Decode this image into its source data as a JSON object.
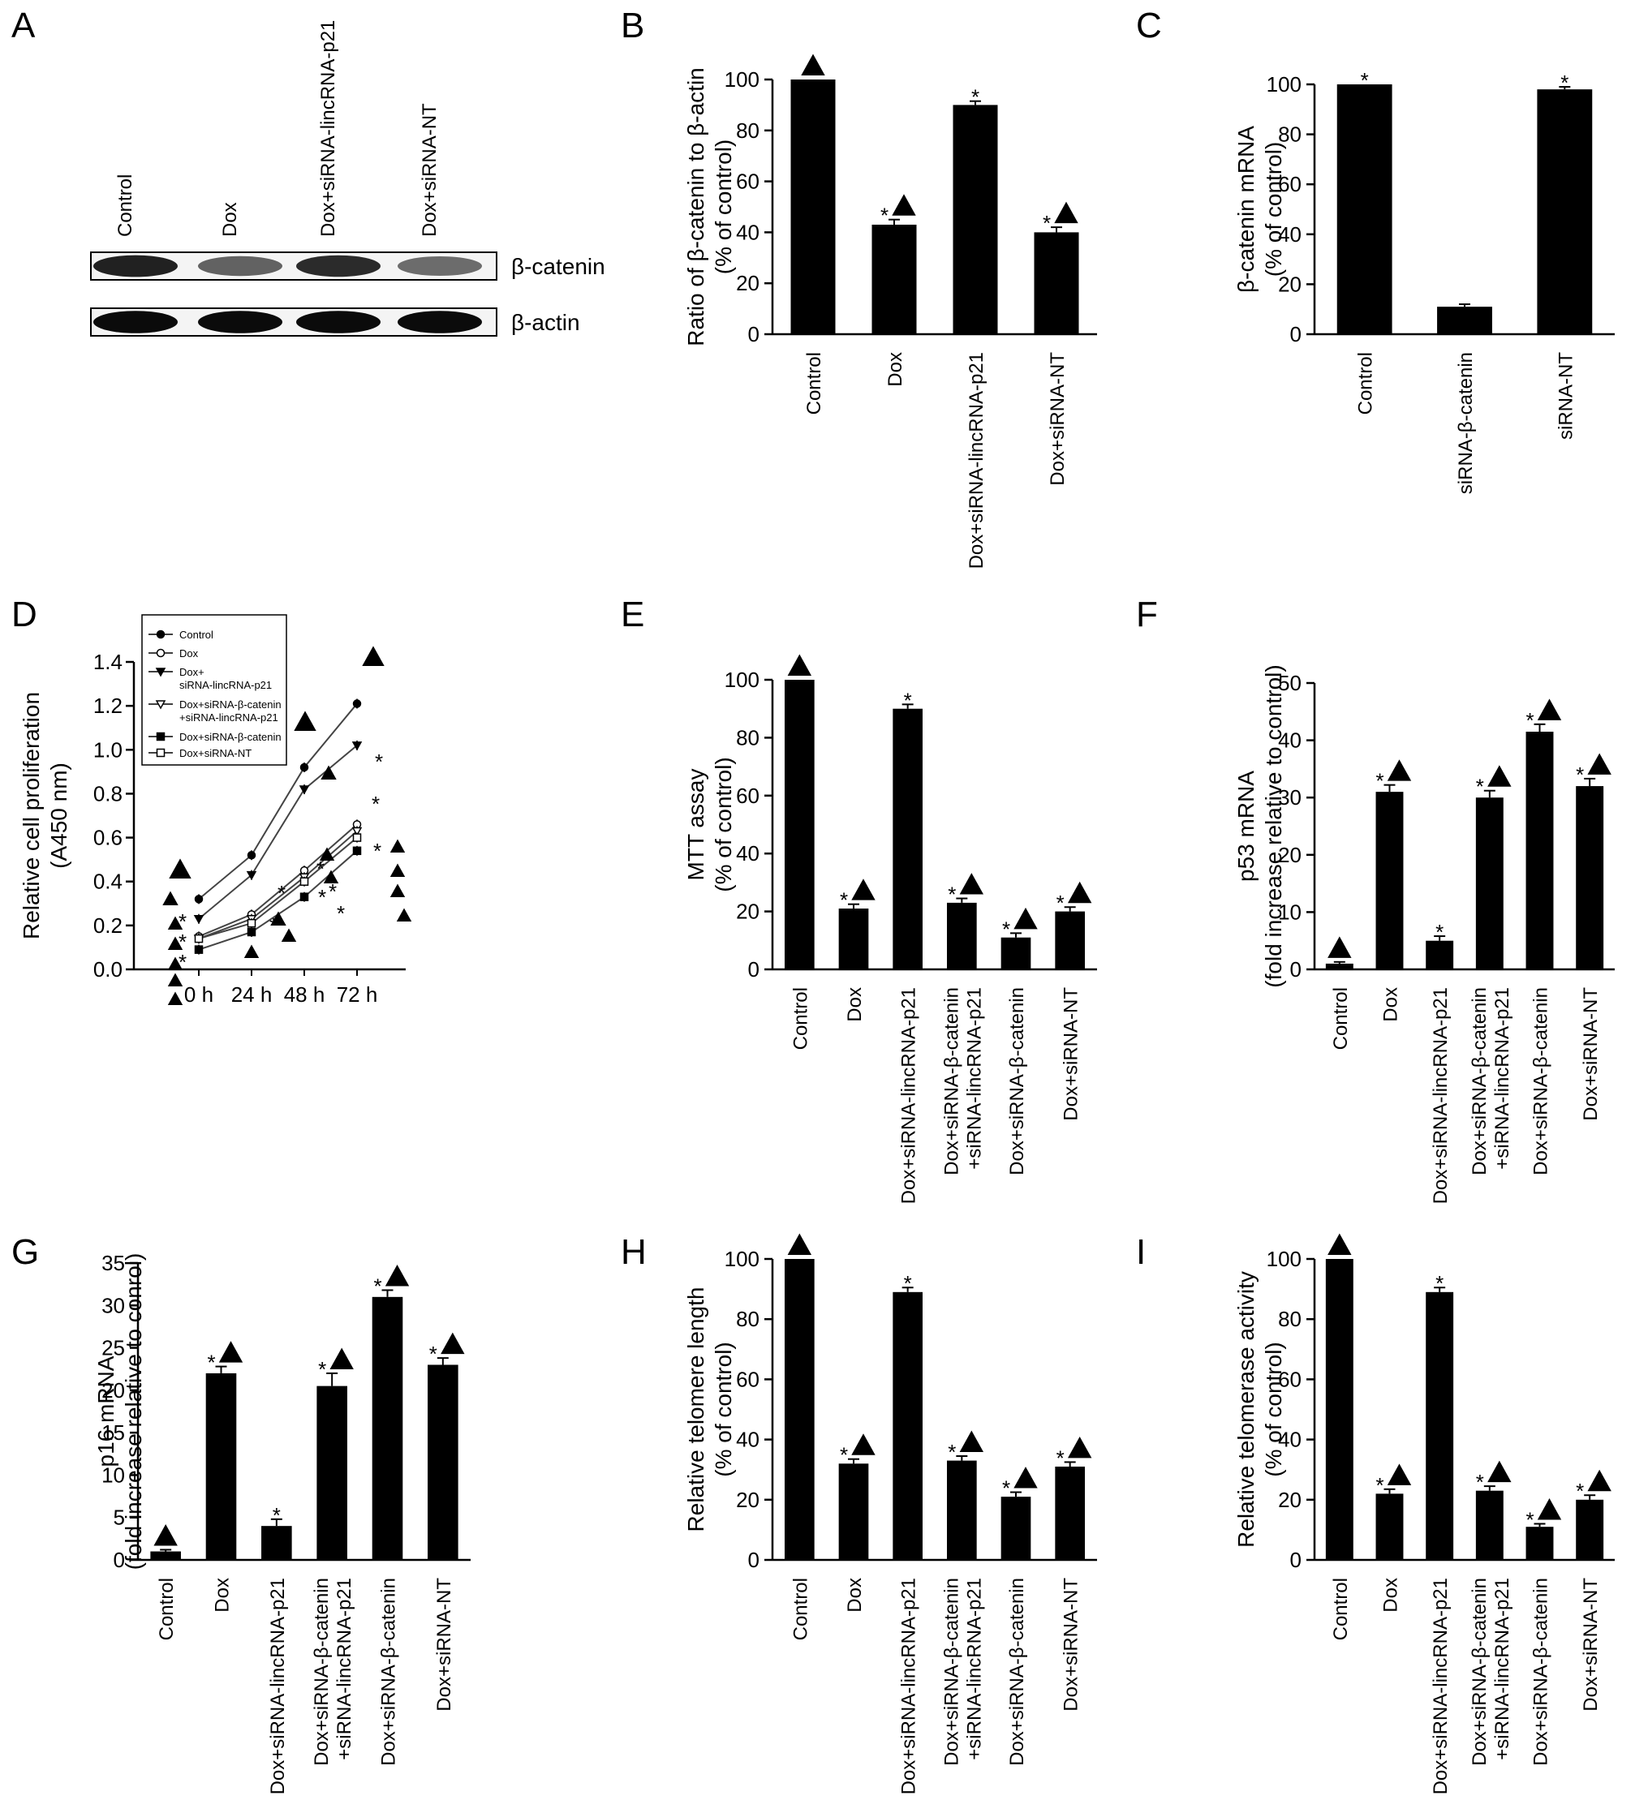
{
  "chart_data": [
    {
      "panel": "A",
      "type": "western-blot",
      "lanes": [
        "Control",
        "Dox",
        "Dox+siRNA-lincRNA-p21",
        "Dox+siRNA-NT"
      ],
      "rows": [
        "β-catenin",
        "β-actin"
      ],
      "intensity": {
        "β-catenin": [
          0.85,
          0.55,
          0.8,
          0.5
        ],
        "β-actin": [
          0.95,
          0.95,
          0.95,
          0.95
        ]
      }
    },
    {
      "panel": "B",
      "type": "bar",
      "ylabel": [
        "Ratio of β-catenin to β-actin",
        "(% of control)"
      ],
      "ylim": [
        0,
        100
      ],
      "yticks": [
        0,
        20,
        40,
        60,
        80,
        100
      ],
      "categories": [
        [
          "Control"
        ],
        [
          "Dox"
        ],
        [
          "Dox+siRNA-lincRNA-p21"
        ],
        [
          "Dox+siRNA-NT"
        ]
      ],
      "values": [
        100,
        43,
        90,
        40
      ],
      "errors": [
        0,
        2,
        1.5,
        2
      ],
      "annotations": [
        "▲",
        "*▲",
        "*",
        "*▲"
      ]
    },
    {
      "panel": "C",
      "type": "bar",
      "ylabel": [
        "β-catenin mRNA",
        "(% of control)"
      ],
      "ylim": [
        0,
        100
      ],
      "yticks": [
        0,
        20,
        40,
        60,
        80,
        100
      ],
      "categories": [
        [
          "Control"
        ],
        [
          "siRNA-β-catenin"
        ],
        [
          "siRNA-NT"
        ]
      ],
      "values": [
        100,
        11,
        98
      ],
      "errors": [
        0,
        1,
        1
      ],
      "annotations": [
        "*",
        "",
        "*"
      ]
    },
    {
      "panel": "D",
      "type": "line",
      "ylabel": [
        "Relative cell proliferation",
        "(A450 nm)"
      ],
      "ylim": [
        0,
        1.4
      ],
      "yticks": [
        "0.0",
        "0.2",
        "0.4",
        "0.6",
        "0.8",
        "1.0",
        "1.2",
        "1.4"
      ],
      "x": [
        "0 h",
        "24 h",
        "48 h",
        "72 h"
      ],
      "series": [
        {
          "name": "Control",
          "values": [
            0.32,
            0.52,
            0.92,
            1.21
          ],
          "marker": "filled-circle"
        },
        {
          "name": "Dox",
          "values": [
            0.15,
            0.25,
            0.45,
            0.66
          ],
          "marker": "open-circle"
        },
        {
          "name": "Dox+ siRNA-lincRNA-p21",
          "values": [
            0.23,
            0.43,
            0.82,
            1.02
          ],
          "marker": "filled-triangle"
        },
        {
          "name": "Dox+siRNA-β-catenin +siRNA-lincRNA-p21",
          "values": [
            0.14,
            0.23,
            0.42,
            0.63
          ],
          "marker": "open-triangle"
        },
        {
          "name": "Dox+siRNA-β-catenin",
          "values": [
            0.09,
            0.17,
            0.33,
            0.54
          ],
          "marker": "filled-square"
        },
        {
          "name": "Dox+siRNA-NT",
          "values": [
            0.14,
            0.21,
            0.4,
            0.6
          ],
          "marker": "open-square"
        }
      ],
      "legend": "top-left"
    },
    {
      "panel": "E",
      "type": "bar",
      "ylabel": [
        "MTT assay",
        "(% of control)"
      ],
      "ylim": [
        0,
        100
      ],
      "yticks": [
        0,
        20,
        40,
        60,
        80,
        100
      ],
      "categories": [
        [
          "Control"
        ],
        [
          "Dox"
        ],
        [
          "Dox+siRNA-lincRNA-p21"
        ],
        [
          "Dox+siRNA-β-catenin",
          "+siRNA-lincRNA-p21"
        ],
        [
          "Dox+siRNA-β-catenin"
        ],
        [
          "Dox+siRNA-NT"
        ]
      ],
      "values": [
        100,
        21,
        90,
        23,
        11,
        20
      ],
      "errors": [
        0,
        1.5,
        1.5,
        1.5,
        1.5,
        1.5
      ],
      "annotations": [
        "▲",
        "*▲",
        "*",
        "*▲",
        "*▲",
        "*▲"
      ]
    },
    {
      "panel": "F",
      "type": "bar",
      "ylabel": [
        "p53 mRNA",
        "(fold increase relative to control)"
      ],
      "ylim": [
        0,
        50
      ],
      "yticks": [
        0,
        10,
        20,
        30,
        40,
        50
      ],
      "categories": [
        [
          "Control"
        ],
        [
          "Dox"
        ],
        [
          "Dox+siRNA-lincRNA-p21"
        ],
        [
          "Dox+siRNA-β-catenin",
          "+siRNA-lincRNA-p21"
        ],
        [
          "Dox+siRNA-β-catenin"
        ],
        [
          "Dox+siRNA-NT"
        ]
      ],
      "values": [
        1,
        31,
        5,
        30,
        41.5,
        32
      ],
      "errors": [
        0.3,
        1.2,
        0.8,
        1.2,
        1.3,
        1.3
      ],
      "annotations": [
        "▲",
        "*▲",
        "*",
        "*▲",
        "*▲",
        "*▲"
      ]
    },
    {
      "panel": "G",
      "type": "bar",
      "ylabel": [
        "p16 mRNA",
        "(fold increase relative to conrol)"
      ],
      "ylim": [
        0,
        35
      ],
      "yticks": [
        0,
        5,
        10,
        15,
        20,
        25,
        30,
        35
      ],
      "categories": [
        [
          "Control"
        ],
        [
          "Dox"
        ],
        [
          "Dox+siRNA-lincRNA-p21"
        ],
        [
          "Dox+siRNA-β-catenin",
          "+siRNA-lincRNA-p21"
        ],
        [
          "Dox+siRNA-β-catenin"
        ],
        [
          "Dox+siRNA-NT"
        ]
      ],
      "values": [
        1,
        22,
        4,
        20.5,
        31,
        23
      ],
      "errors": [
        0.2,
        0.8,
        0.8,
        1.5,
        0.8,
        0.8
      ],
      "annotations": [
        "▲",
        "*▲",
        "*",
        "*▲",
        "*▲",
        "*▲"
      ]
    },
    {
      "panel": "H",
      "type": "bar",
      "ylabel": [
        "Relative telomere length",
        "(% of control)"
      ],
      "ylim": [
        0,
        100
      ],
      "yticks": [
        0,
        20,
        40,
        60,
        80,
        100
      ],
      "categories": [
        [
          "Control"
        ],
        [
          "Dox"
        ],
        [
          "Dox+siRNA-lincRNA-p21"
        ],
        [
          "Dox+siRNA-β-catenin",
          "+siRNA-lincRNA-p21"
        ],
        [
          "Dox+siRNA-β-catenin"
        ],
        [
          "Dox+siRNA-NT"
        ]
      ],
      "values": [
        100,
        32,
        89,
        33,
        21,
        31
      ],
      "errors": [
        0,
        1.5,
        1.5,
        1.5,
        1.5,
        1.5
      ],
      "annotations": [
        "▲",
        "*▲",
        "*",
        "*▲",
        "*▲",
        "*▲"
      ]
    },
    {
      "panel": "I",
      "type": "bar",
      "ylabel": [
        "Relative telomerase activity",
        "(% of control)"
      ],
      "ylim": [
        0,
        100
      ],
      "yticks": [
        0,
        20,
        40,
        60,
        80,
        100
      ],
      "categories": [
        [
          "Control"
        ],
        [
          "Dox"
        ],
        [
          "Dox+siRNA-lincRNA-p21"
        ],
        [
          "Dox+siRNA-β-catenin",
          "+siRNA-lincRNA-p21"
        ],
        [
          "Dox+siRNA-β-catenin"
        ],
        [
          "Dox+siRNA-NT"
        ]
      ],
      "values": [
        100,
        22,
        89,
        23,
        11,
        20
      ],
      "errors": [
        0,
        1.5,
        1.5,
        1.5,
        1,
        1.5
      ],
      "annotations": [
        "▲",
        "*▲",
        "*",
        "*▲",
        "*▲",
        "*▲"
      ]
    }
  ]
}
